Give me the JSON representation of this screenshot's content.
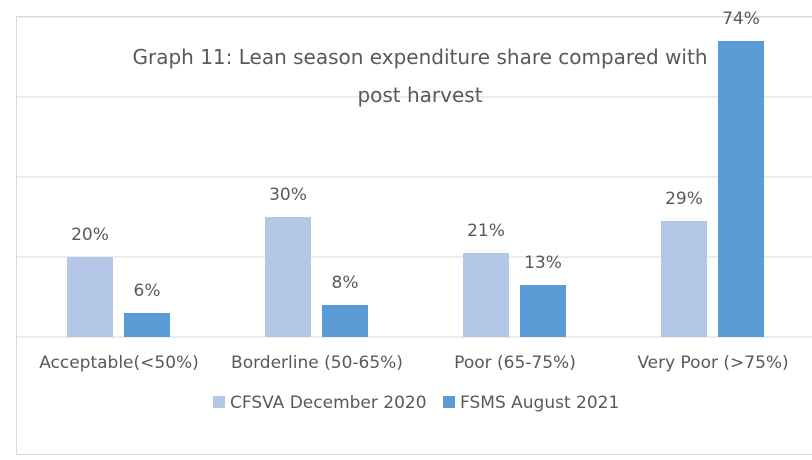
{
  "chart_data": {
    "type": "bar",
    "title": "Graph 11: Lean season expenditure share compared with post harvest",
    "categories": [
      "Acceptable(<50%)",
      "Borderline (50-65%)",
      "Poor (65-75%)",
      "Very Poor (>75%)"
    ],
    "series": [
      {
        "name": "CFSVA December 2020",
        "color": "#b4c7e7",
        "values": [
          20,
          30,
          21,
          29
        ],
        "value_labels": [
          "20%",
          "30%",
          "21%",
          "29%"
        ]
      },
      {
        "name": "FSMS August 2021",
        "color": "#5b9bd5",
        "values": [
          6,
          8,
          13,
          74
        ],
        "value_labels": [
          "6%",
          "8%",
          "13%",
          "74%"
        ]
      }
    ],
    "ylim": [
      0,
      80
    ],
    "yticks": [
      0,
      20,
      40,
      60,
      80
    ],
    "grid": true,
    "legend": "bottom"
  }
}
